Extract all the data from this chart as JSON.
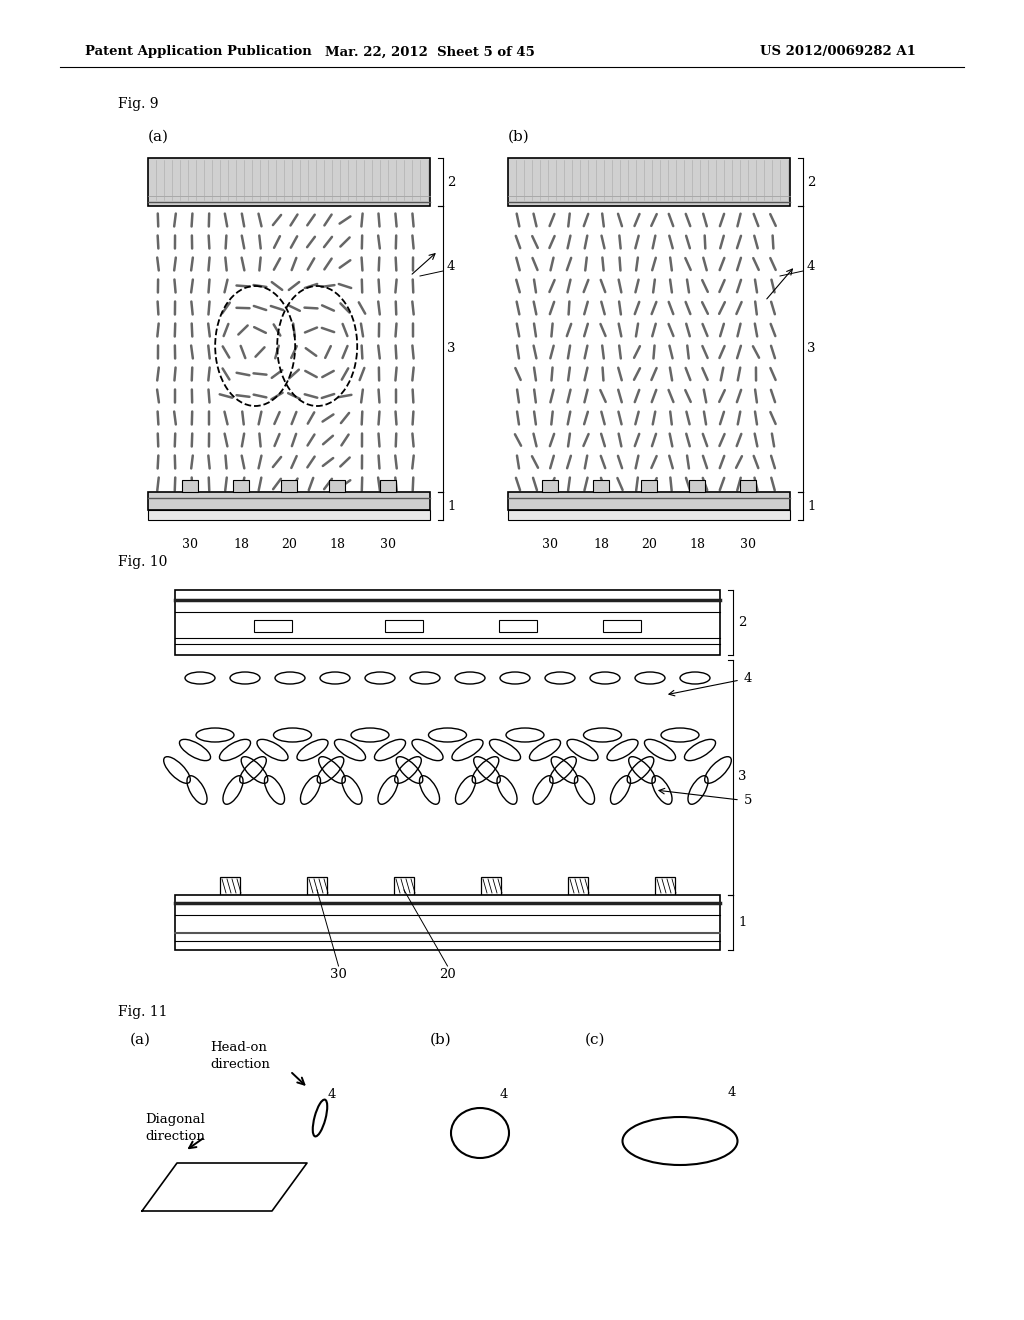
{
  "header_left": "Patent Application Publication",
  "header_mid": "Mar. 22, 2012  Sheet 5 of 45",
  "header_right": "US 2012/0069282 A1",
  "fig9_label": "Fig. 9",
  "fig10_label": "Fig. 10",
  "fig11_label": "Fig. 11",
  "bg_color": "#ffffff",
  "line_color": "#000000"
}
